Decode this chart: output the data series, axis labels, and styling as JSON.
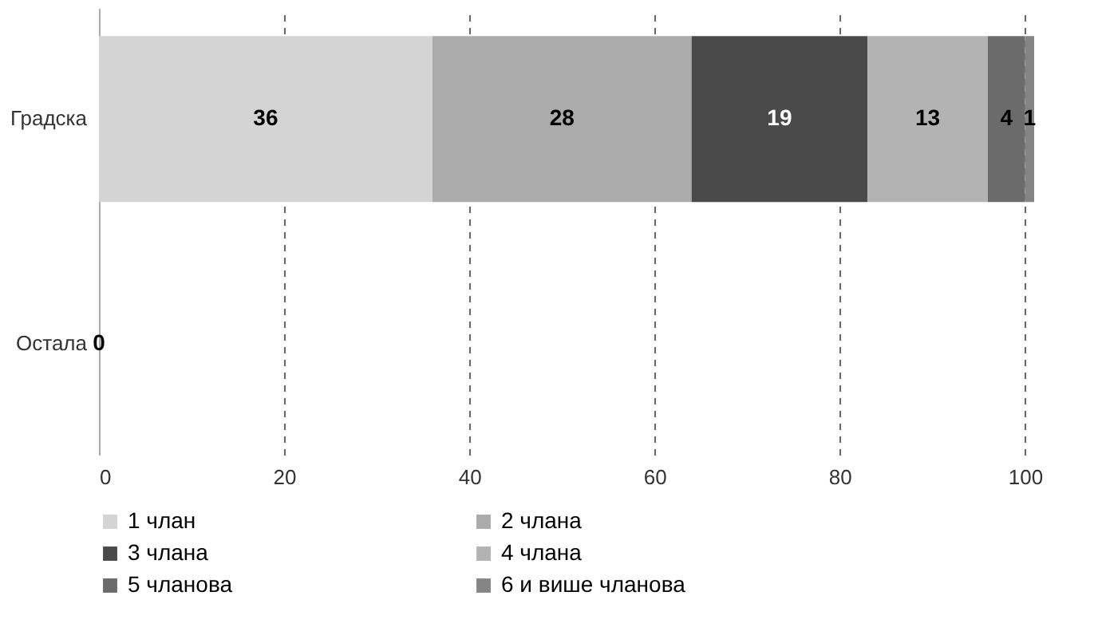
{
  "chart_data": {
    "type": "bar",
    "orientation": "horizontal",
    "stacked": true,
    "categories": [
      "Градска",
      "Остала"
    ],
    "series": [
      {
        "name": "1 члан",
        "color": "#d4d4d4",
        "values": [
          36,
          0
        ],
        "value_labels": [
          "36",
          "0"
        ]
      },
      {
        "name": "2 члана",
        "color": "#ababab",
        "values": [
          28,
          null
        ],
        "value_labels": [
          "28",
          null
        ]
      },
      {
        "name": "3 члана",
        "color": "#4a4a4a",
        "values": [
          19,
          null
        ],
        "value_labels": [
          "19",
          null
        ]
      },
      {
        "name": "4 члана",
        "color": "#b3b3b3",
        "values": [
          13,
          null
        ],
        "value_labels": [
          "13",
          null
        ]
      },
      {
        "name": "5 чланова",
        "color": "#6b6b6b",
        "values": [
          4,
          null
        ],
        "value_labels": [
          "4",
          null
        ]
      },
      {
        "name": "6 и више чланова",
        "color": "#858585",
        "values": [
          1,
          null
        ],
        "value_labels": [
          "1",
          null
        ]
      }
    ],
    "xlim": [
      0,
      101
    ],
    "xticks": [
      0,
      20,
      40,
      60,
      80,
      100
    ],
    "grid": "x",
    "legend": "bottom"
  }
}
